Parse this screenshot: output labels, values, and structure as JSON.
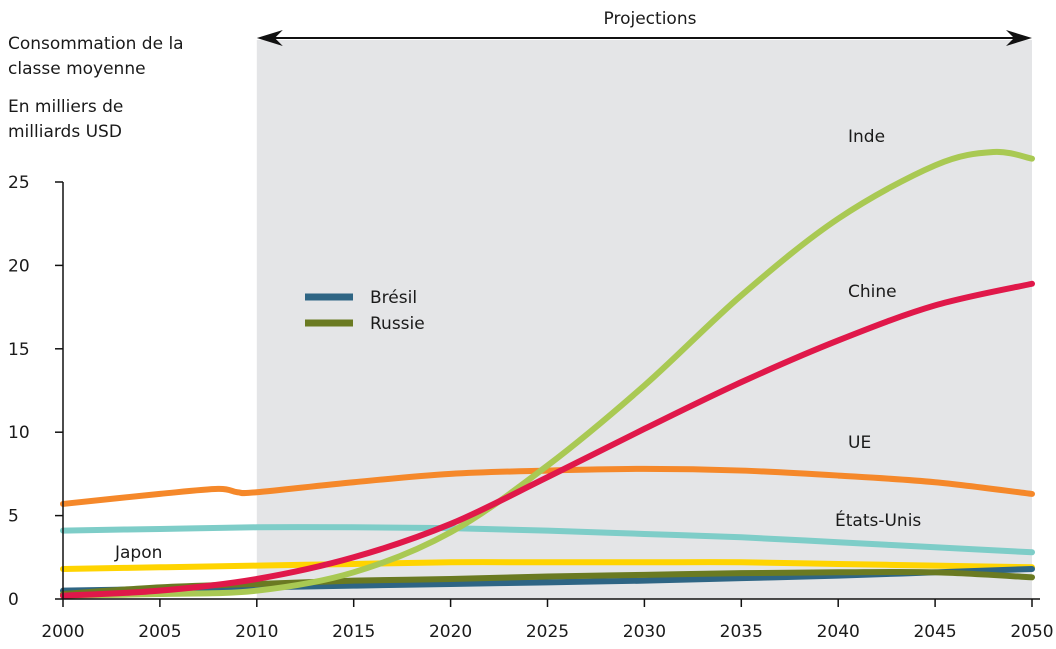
{
  "chart_data": {
    "type": "line",
    "ylabel": "Consommation de la classe moyenne",
    "ylabel_line1": "Consommation de la",
    "ylabel_line2": "classe moyenne",
    "unit_label_line1": "En milliers de",
    "unit_label_line2": "milliards USD",
    "projection_label": "Projections",
    "projection_range": [
      2010,
      2050
    ],
    "xlim": [
      2000,
      2050
    ],
    "ylim": [
      0,
      25
    ],
    "x_ticks": [
      2000,
      2005,
      2010,
      2015,
      2020,
      2025,
      2030,
      2035,
      2040,
      2045,
      2050
    ],
    "y_ticks": [
      0,
      5,
      10,
      15,
      20,
      25
    ],
    "series": [
      {
        "name": "Japon",
        "color": "#ffd400",
        "labeled_on_chart": true,
        "x": [
          2000,
          2005,
          2010,
          2015,
          2020,
          2025,
          2030,
          2035,
          2040,
          2045,
          2050
        ],
        "y": [
          1.8,
          1.9,
          2.0,
          2.1,
          2.2,
          2.2,
          2.2,
          2.2,
          2.1,
          2.0,
          1.9
        ]
      },
      {
        "name": "États-Unis",
        "color": "#7ecdc8",
        "labeled_on_chart": true,
        "x": [
          2000,
          2005,
          2010,
          2015,
          2020,
          2025,
          2030,
          2035,
          2040,
          2045,
          2050
        ],
        "y": [
          4.1,
          4.2,
          4.3,
          4.3,
          4.25,
          4.1,
          3.9,
          3.7,
          3.4,
          3.1,
          2.8
        ]
      },
      {
        "name": "UE",
        "color": "#f5882a",
        "labeled_on_chart": true,
        "x": [
          2000,
          2005,
          2008,
          2009,
          2010,
          2015,
          2020,
          2025,
          2030,
          2035,
          2040,
          2045,
          2050
        ],
        "y": [
          5.7,
          6.3,
          6.6,
          6.4,
          6.4,
          7.0,
          7.5,
          7.7,
          7.8,
          7.7,
          7.4,
          7.0,
          6.3
        ]
      },
      {
        "name": "Chine",
        "color": "#e0184a",
        "labeled_on_chart": true,
        "x": [
          2000,
          2005,
          2010,
          2015,
          2020,
          2025,
          2030,
          2035,
          2040,
          2045,
          2050
        ],
        "y": [
          0.2,
          0.5,
          1.2,
          2.5,
          4.5,
          7.3,
          10.2,
          13.0,
          15.5,
          17.6,
          18.9
        ]
      },
      {
        "name": "Inde",
        "color": "#a9c953",
        "labeled_on_chart": true,
        "x": [
          2000,
          2005,
          2010,
          2015,
          2020,
          2025,
          2030,
          2035,
          2040,
          2045,
          2048,
          2050
        ],
        "y": [
          0.2,
          0.3,
          0.5,
          1.6,
          4.0,
          8.0,
          12.8,
          18.2,
          22.8,
          26.0,
          26.8,
          26.4
        ]
      },
      {
        "name": "Brésil",
        "color": "#2e6584",
        "labeled_on_chart": false,
        "x": [
          2000,
          2005,
          2010,
          2015,
          2020,
          2025,
          2030,
          2035,
          2040,
          2045,
          2050
        ],
        "y": [
          0.5,
          0.6,
          0.7,
          0.8,
          0.9,
          1.0,
          1.1,
          1.25,
          1.4,
          1.6,
          1.8
        ]
      },
      {
        "name": "Russie",
        "color": "#6a7a22",
        "labeled_on_chart": false,
        "x": [
          2000,
          2005,
          2010,
          2015,
          2020,
          2025,
          2030,
          2035,
          2040,
          2045,
          2050
        ],
        "y": [
          0.3,
          0.7,
          0.9,
          1.1,
          1.2,
          1.35,
          1.45,
          1.55,
          1.6,
          1.6,
          1.3
        ]
      }
    ],
    "legend": [
      {
        "name": "Brésil",
        "color": "#2e6584"
      },
      {
        "name": "Russie",
        "color": "#6a7a22"
      }
    ],
    "legend_placement": "inside-left",
    "projection_shade_color": "#e4e5e7",
    "grid": false
  }
}
